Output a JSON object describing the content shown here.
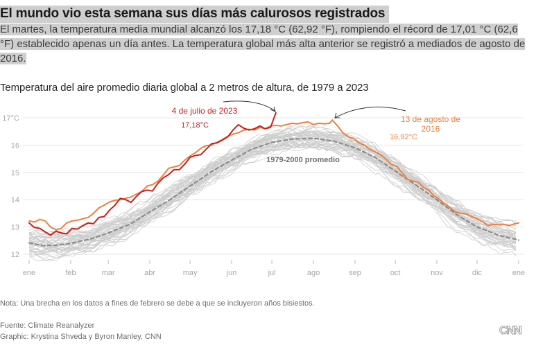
{
  "header": {
    "headline": "El mundo vio esta semana sus días más calurosos registrados",
    "dek": "El martes, la temperatura media mundial alcanzó los 17,18 °C (62,92 °F), rompiendo el récord de 17,01 °C (62,6 °F) establecido apenas un día antes. La temperatura global más alta anterior se registró a mediados de agosto de 2016."
  },
  "footer": {
    "note": "Nota: Una brecha en los datos a fines de febrero se debe a que se incluyeron años bisiestos.",
    "source": "Fuente: Climate Reanalyzer",
    "credit": "Graphic: Krystina Shveda y Byron Manley, CNN",
    "logo": "CNN"
  },
  "chart_data": {
    "type": "line",
    "title": "Temperatura del aire promedio diaria global a 2 metros de altura, de 1979 a 2023",
    "xlabel": "",
    "ylabel": "°C",
    "ylim": [
      12,
      17
    ],
    "xlim_day_of_year": [
      0,
      365
    ],
    "grid": true,
    "y_ticks": [
      {
        "value": 17,
        "label": "17°C"
      },
      {
        "value": 16,
        "label": "16"
      },
      {
        "value": 15,
        "label": "15"
      },
      {
        "value": 14,
        "label": "14"
      },
      {
        "value": 13,
        "label": "13"
      },
      {
        "value": 12,
        "label": "12"
      }
    ],
    "x_ticks": [
      {
        "day": 0,
        "label": "ene"
      },
      {
        "day": 31,
        "label": "feb"
      },
      {
        "day": 59,
        "label": "mar"
      },
      {
        "day": 90,
        "label": "abr"
      },
      {
        "day": 120,
        "label": "may"
      },
      {
        "day": 151,
        "label": "jun"
      },
      {
        "day": 181,
        "label": "jul"
      },
      {
        "day": 212,
        "label": "ago"
      },
      {
        "day": 243,
        "label": "sep"
      },
      {
        "day": 273,
        "label": "oct"
      },
      {
        "day": 304,
        "label": "nov"
      },
      {
        "day": 334,
        "label": "dic"
      },
      {
        "day": 365,
        "label": "ene"
      }
    ],
    "colors": {
      "y2023": "#c8201f",
      "y2016": "#f07f3c",
      "average": "#8c8c8c",
      "other_years": "#cccccc",
      "grid": "#e6e6e6",
      "tick_label": "#a6a6a6",
      "arrow": "#333333"
    },
    "series": [
      {
        "name": "2023",
        "x_day": [
          0,
          4,
          8,
          12,
          16,
          20,
          24,
          28,
          32,
          36,
          40,
          44,
          48,
          52,
          56,
          60,
          64,
          68,
          72,
          76,
          80,
          84,
          88,
          92,
          96,
          100,
          104,
          108,
          112,
          116,
          120,
          124,
          128,
          132,
          136,
          140,
          144,
          148,
          152,
          156,
          160,
          164,
          168,
          172,
          176,
          180,
          184
        ],
        "values": [
          13.15,
          12.98,
          12.95,
          12.82,
          12.7,
          12.85,
          12.78,
          12.75,
          12.95,
          12.92,
          13.05,
          13.15,
          13.12,
          13.35,
          13.38,
          13.62,
          13.8,
          14.05,
          14.0,
          13.9,
          14.12,
          14.3,
          14.35,
          14.32,
          14.6,
          14.8,
          14.92,
          15.1,
          15.1,
          15.3,
          15.55,
          15.62,
          15.65,
          15.85,
          16.05,
          16.08,
          16.18,
          16.3,
          16.55,
          16.75,
          16.62,
          16.55,
          16.6,
          16.7,
          16.6,
          16.65,
          17.18
        ]
      },
      {
        "name": "2016",
        "x_day": [
          0,
          4,
          8,
          12,
          16,
          20,
          24,
          28,
          32,
          36,
          40,
          44,
          48,
          52,
          56,
          60,
          64,
          68,
          72,
          76,
          80,
          84,
          88,
          92,
          96,
          100,
          104,
          108,
          112,
          116,
          120,
          124,
          128,
          132,
          136,
          140,
          144,
          148,
          152,
          156,
          160,
          164,
          168,
          172,
          176,
          180,
          184,
          188,
          192,
          196,
          200,
          204,
          208,
          212,
          216,
          220,
          224,
          226,
          230,
          234,
          238,
          242,
          246,
          250,
          254,
          258,
          262,
          266,
          270,
          274,
          278,
          282,
          286,
          290,
          294,
          298,
          302,
          306,
          310,
          314,
          318,
          322,
          326,
          330,
          334,
          338,
          342,
          346,
          350,
          354,
          358,
          362,
          365
        ],
        "values": [
          13.22,
          13.18,
          13.28,
          13.22,
          13.0,
          12.9,
          12.95,
          13.15,
          13.22,
          13.25,
          13.3,
          13.35,
          13.5,
          13.7,
          13.8,
          13.92,
          13.98,
          14.0,
          14.05,
          14.1,
          14.2,
          14.3,
          14.5,
          14.55,
          14.68,
          14.9,
          15.15,
          15.2,
          15.25,
          15.45,
          15.6,
          15.72,
          15.88,
          15.98,
          16.0,
          16.1,
          16.2,
          16.32,
          16.4,
          16.45,
          16.55,
          16.58,
          16.55,
          16.65,
          16.6,
          16.7,
          16.72,
          16.7,
          16.75,
          16.8,
          16.78,
          16.82,
          16.85,
          16.75,
          16.8,
          16.78,
          16.8,
          16.92,
          16.7,
          16.45,
          16.3,
          16.25,
          16.08,
          16.0,
          15.85,
          15.75,
          15.65,
          15.48,
          15.3,
          15.22,
          15.0,
          14.75,
          14.68,
          14.65,
          14.45,
          14.35,
          14.15,
          14.0,
          13.85,
          13.7,
          13.55,
          13.5,
          13.48,
          13.38,
          13.3,
          13.2,
          13.05,
          13.1,
          13.08,
          13.1,
          13.05,
          13.12,
          13.15
        ]
      },
      {
        "name": "1979-2000 promedio",
        "style": "dashed",
        "x_day": [
          0,
          10,
          20,
          31,
          45,
          59,
          75,
          90,
          105,
          120,
          135,
          151,
          166,
          181,
          196,
          212,
          227,
          243,
          258,
          273,
          288,
          304,
          319,
          334,
          350,
          365
        ],
        "values": [
          12.42,
          12.32,
          12.33,
          12.4,
          12.55,
          12.78,
          13.1,
          13.55,
          14.0,
          14.5,
          15.0,
          15.45,
          15.85,
          16.1,
          16.22,
          16.25,
          16.15,
          15.9,
          15.55,
          15.05,
          14.55,
          14.0,
          13.45,
          13.0,
          12.7,
          12.52
        ]
      }
    ],
    "other_years_count": 43,
    "annotations": [
      {
        "label": "4 de julio de 2023",
        "value_label": "17,18°C",
        "series": "2023",
        "day": 184,
        "value": 17.18
      },
      {
        "label_lines": [
          "13 de agosto de",
          "2016"
        ],
        "value_label": "16,92°C",
        "series": "2016",
        "day": 226,
        "value": 16.92
      },
      {
        "label": "1979-2000 promedio",
        "series": "1979-2000 promedio"
      }
    ]
  }
}
